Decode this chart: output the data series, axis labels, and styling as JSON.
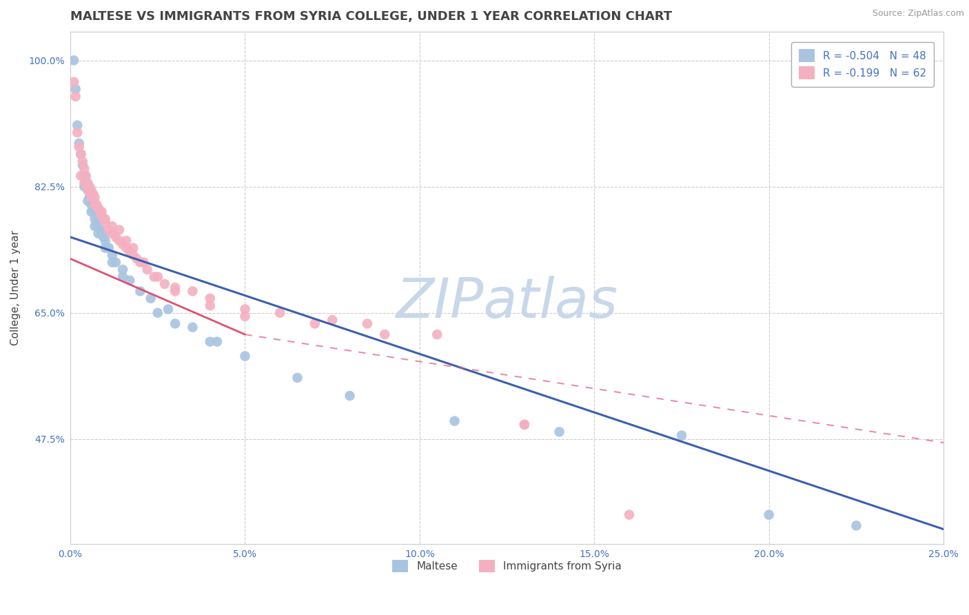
{
  "title": "MALTESE VS IMMIGRANTS FROM SYRIA COLLEGE, UNDER 1 YEAR CORRELATION CHART",
  "source": "Source: ZipAtlas.com",
  "ylabel": "College, Under 1 year",
  "xlabel": "",
  "xlim": [
    0.0,
    25.0
  ],
  "ylim": [
    33.0,
    104.0
  ],
  "yticks": [
    47.5,
    65.0,
    82.5,
    100.0
  ],
  "xticks": [
    0.0,
    5.0,
    10.0,
    15.0,
    20.0,
    25.0
  ],
  "xtick_labels": [
    "0.0%",
    "5.0%",
    "10.0%",
    "15.0%",
    "20.0%",
    "25.0%"
  ],
  "ytick_labels": [
    "47.5%",
    "65.0%",
    "82.5%",
    "100.0%"
  ],
  "blue_line": {
    "x0": 0.0,
    "y0": 75.5,
    "x1": 25.0,
    "y1": 35.0
  },
  "pink_line_solid": {
    "x0": 0.0,
    "y0": 72.5,
    "x1": 5.0,
    "y1": 62.0
  },
  "pink_line_dashed": {
    "x0": 5.0,
    "y0": 62.0,
    "x1": 25.0,
    "y1": 47.0
  },
  "series": [
    {
      "name": "Maltese",
      "color": "#a8c4e0",
      "R": -0.504,
      "N": 48,
      "line_color": "#3a5fb0",
      "scatter_x": [
        0.1,
        0.15,
        0.2,
        0.25,
        0.3,
        0.35,
        0.4,
        0.45,
        0.5,
        0.55,
        0.6,
        0.65,
        0.7,
        0.75,
        0.8,
        0.85,
        0.9,
        0.95,
        1.0,
        1.1,
        1.2,
        1.3,
        1.5,
        1.7,
        2.0,
        2.3,
        2.8,
        3.5,
        4.2,
        5.0,
        6.5,
        8.0,
        11.0,
        14.0,
        17.5,
        20.0,
        22.5,
        0.4,
        0.5,
        0.6,
        0.7,
        0.8,
        1.0,
        1.2,
        1.5,
        2.5,
        3.0,
        4.0
      ],
      "scatter_y": [
        100.0,
        96.0,
        91.0,
        88.5,
        87.0,
        85.5,
        84.0,
        83.0,
        82.0,
        81.0,
        80.0,
        79.0,
        78.0,
        77.5,
        77.0,
        76.5,
        76.0,
        75.5,
        75.0,
        74.0,
        73.0,
        72.0,
        71.0,
        69.5,
        68.0,
        67.0,
        65.5,
        63.0,
        61.0,
        59.0,
        56.0,
        53.5,
        50.0,
        48.5,
        48.0,
        37.0,
        35.5,
        82.5,
        80.5,
        79.0,
        77.0,
        76.0,
        74.0,
        72.0,
        70.0,
        65.0,
        63.5,
        61.0
      ]
    },
    {
      "name": "Immigrants from Syria",
      "color": "#f4b0c0",
      "R": -0.199,
      "N": 62,
      "line_color": "#e05070",
      "scatter_x": [
        0.1,
        0.15,
        0.2,
        0.25,
        0.3,
        0.35,
        0.4,
        0.45,
        0.5,
        0.55,
        0.6,
        0.65,
        0.7,
        0.75,
        0.8,
        0.85,
        0.9,
        0.95,
        1.0,
        1.1,
        1.2,
        1.3,
        1.4,
        1.5,
        1.6,
        1.7,
        1.8,
        1.9,
        2.0,
        2.2,
        2.4,
        2.7,
        3.0,
        3.5,
        4.0,
        5.0,
        6.0,
        7.5,
        8.5,
        10.5,
        13.0,
        0.3,
        0.4,
        0.5,
        0.6,
        0.7,
        0.8,
        0.9,
        1.0,
        1.2,
        1.4,
        1.6,
        1.8,
        2.1,
        2.5,
        3.0,
        4.0,
        5.0,
        7.0,
        9.0,
        13.0,
        16.0
      ],
      "scatter_y": [
        97.0,
        95.0,
        90.0,
        88.0,
        87.0,
        86.0,
        85.0,
        84.0,
        83.0,
        82.5,
        82.0,
        81.5,
        81.0,
        80.0,
        79.5,
        79.0,
        78.5,
        78.0,
        77.5,
        76.5,
        76.0,
        75.5,
        75.0,
        74.5,
        74.0,
        73.5,
        73.0,
        72.5,
        72.0,
        71.0,
        70.0,
        69.0,
        68.5,
        68.0,
        67.0,
        65.5,
        65.0,
        64.0,
        63.5,
        62.0,
        49.5,
        84.0,
        83.0,
        82.0,
        81.0,
        80.0,
        79.5,
        79.0,
        78.0,
        77.0,
        76.5,
        75.0,
        74.0,
        72.0,
        70.0,
        68.0,
        66.0,
        64.5,
        63.5,
        62.0,
        49.5,
        37.0
      ]
    }
  ],
  "watermark": "ZIPatlas",
  "watermark_color": "#c8d8ea",
  "background_color": "#ffffff",
  "grid_color": "#cccccc",
  "title_color": "#444444",
  "axis_color": "#4472c4",
  "tick_color": "#4472c4",
  "title_fontsize": 13,
  "label_fontsize": 11,
  "tick_fontsize": 10
}
